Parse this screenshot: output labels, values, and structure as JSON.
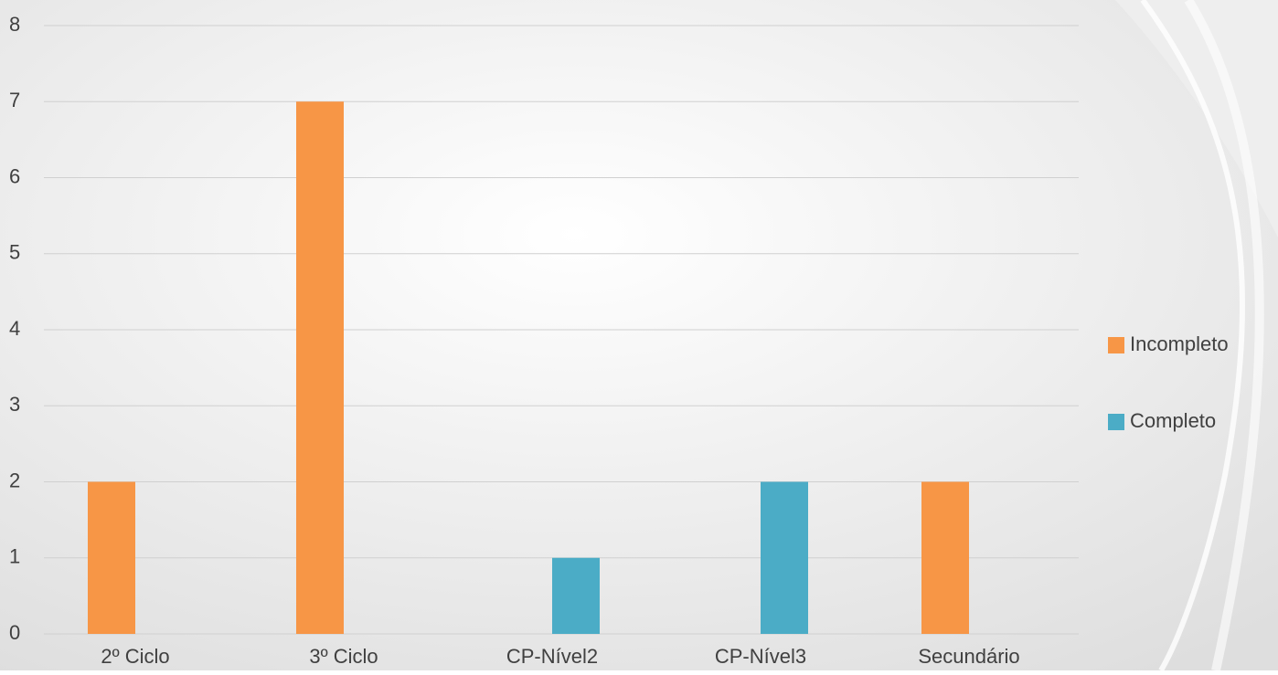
{
  "chart_data": {
    "type": "bar",
    "categories": [
      "2º Ciclo",
      "3º Ciclo",
      "CP-Nível2",
      "CP-Nível3",
      "Secundário"
    ],
    "series": [
      {
        "name": "Incompleto",
        "color": "#f79646",
        "values": [
          2,
          7,
          0,
          0,
          2
        ]
      },
      {
        "name": "Completo",
        "color": "#4bacc6",
        "values": [
          0,
          0,
          1,
          2,
          0
        ]
      }
    ],
    "ylim": [
      0,
      8
    ],
    "yticks": [
      0,
      1,
      2,
      3,
      4,
      5,
      6,
      7,
      8
    ],
    "grid": true,
    "legend": "right"
  }
}
